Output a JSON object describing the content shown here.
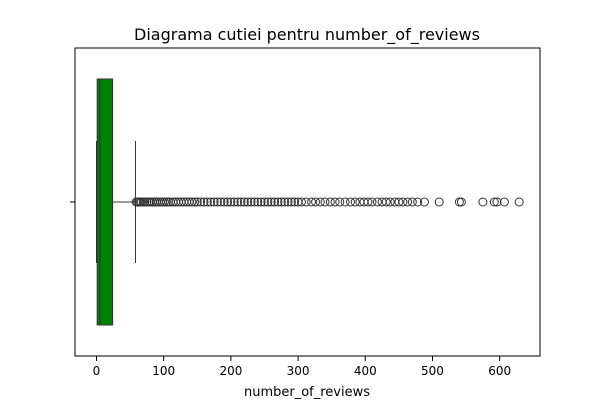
{
  "chart_data": {
    "type": "box",
    "title": "Diagrama cutiei pentru number_of_reviews",
    "xlabel": "number_of_reviews",
    "ylabel": "",
    "xlim": [
      -32,
      660
    ],
    "xticks": [
      0,
      100,
      200,
      300,
      400,
      500,
      600
    ],
    "orientation": "horizontal",
    "grid": false,
    "box": {
      "color": "#008000",
      "whisker_low": 0,
      "q1": 1,
      "median": 5,
      "q3": 24,
      "whisker_high": 58
    },
    "outliers": [
      59,
      61,
      63,
      65,
      67,
      70,
      72,
      75,
      78,
      80,
      83,
      86,
      89,
      92,
      95,
      98,
      101,
      104,
      107,
      110,
      114,
      118,
      122,
      126,
      130,
      134,
      138,
      142,
      146,
      150,
      155,
      160,
      165,
      170,
      175,
      180,
      185,
      190,
      195,
      200,
      205,
      210,
      215,
      220,
      225,
      230,
      235,
      240,
      245,
      250,
      255,
      260,
      265,
      270,
      275,
      280,
      285,
      290,
      295,
      300,
      305,
      312,
      320,
      326,
      333,
      340,
      348,
      355,
      362,
      370,
      378,
      385,
      392,
      398,
      404,
      410,
      418,
      425,
      431,
      437,
      444,
      450,
      456,
      463,
      470,
      478,
      488,
      510,
      540,
      543,
      575,
      592,
      596,
      607,
      629
    ]
  }
}
